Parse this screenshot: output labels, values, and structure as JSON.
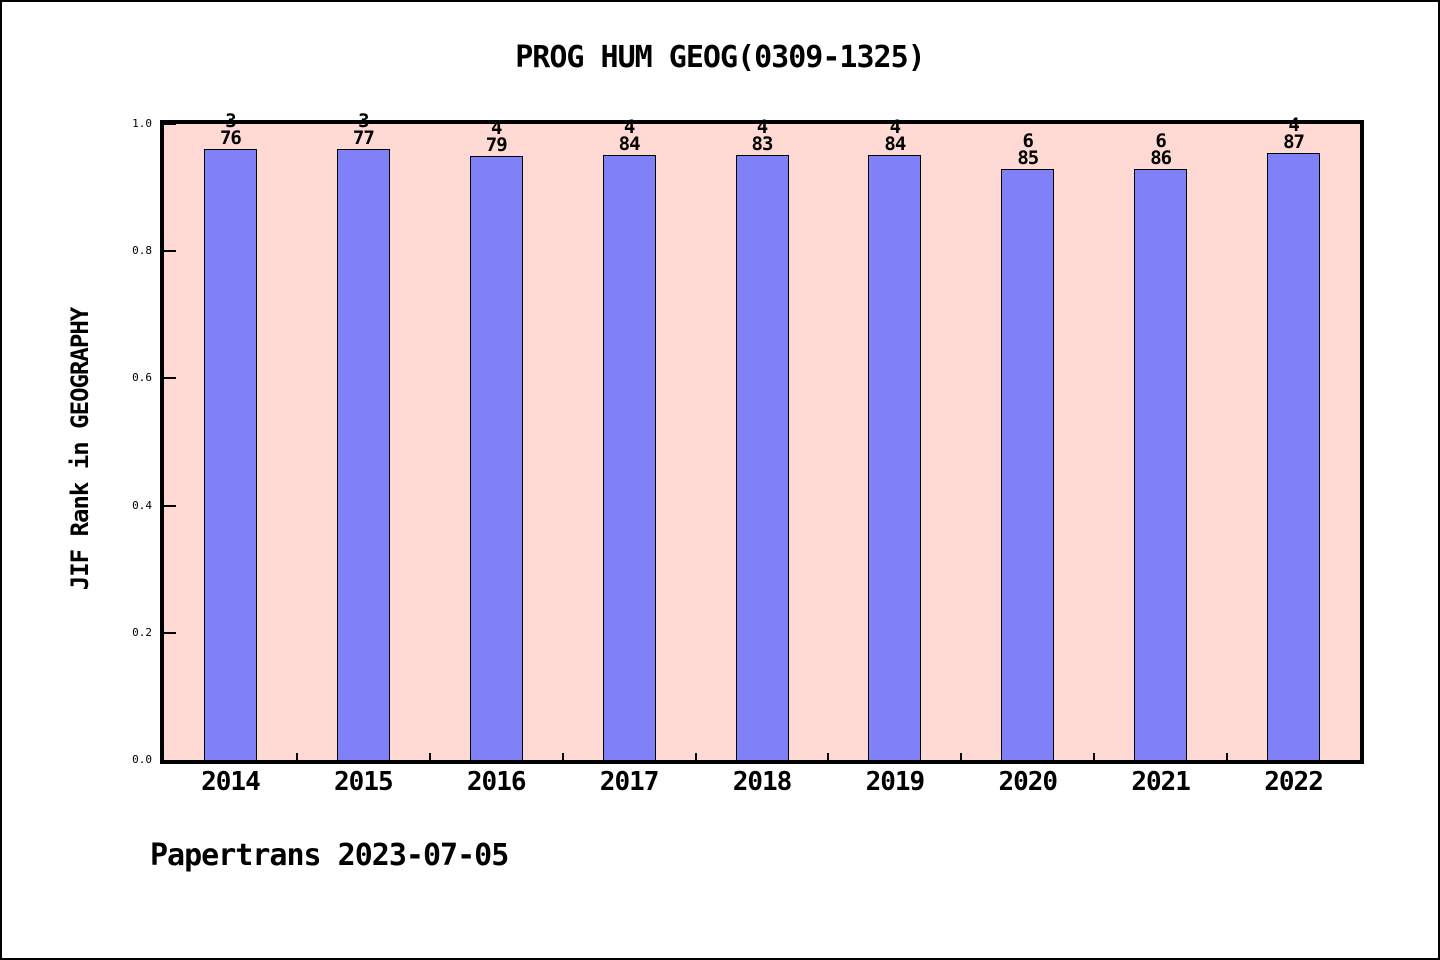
{
  "window": {
    "background": "#ffffff",
    "border_color": "#000000"
  },
  "chart_data": {
    "type": "bar",
    "title": "PROG HUM GEOG(0309-1325)",
    "xlabel": "",
    "ylabel": "JIF Rank in GEOGRAPHY",
    "categories": [
      "2014",
      "2015",
      "2016",
      "2017",
      "2018",
      "2019",
      "2020",
      "2021",
      "2022"
    ],
    "values": [
      0.961,
      0.961,
      0.949,
      0.952,
      0.952,
      0.952,
      0.929,
      0.93,
      0.954
    ],
    "bar_top_labels": [
      {
        "rank": "3",
        "total": "76"
      },
      {
        "rank": "3",
        "total": "77"
      },
      {
        "rank": "4",
        "total": "79"
      },
      {
        "rank": "4",
        "total": "84"
      },
      {
        "rank": "4",
        "total": "83"
      },
      {
        "rank": "4",
        "total": "84"
      },
      {
        "rank": "6",
        "total": "85"
      },
      {
        "rank": "6",
        "total": "86"
      },
      {
        "rank": "4",
        "total": "87"
      }
    ],
    "ylim": [
      0.0,
      1.0
    ],
    "yticks": [
      "0.0",
      "0.2",
      "0.4",
      "0.6",
      "0.8",
      "1.0"
    ],
    "grid": false,
    "legend": null,
    "colors": {
      "bar_fill": "#8080f8",
      "bar_edge": "#000000",
      "plot_background": "#ffd9d3",
      "axis": "#000000",
      "text": "#000000"
    }
  },
  "footer": {
    "text": "Papertrans 2023-07-05"
  }
}
